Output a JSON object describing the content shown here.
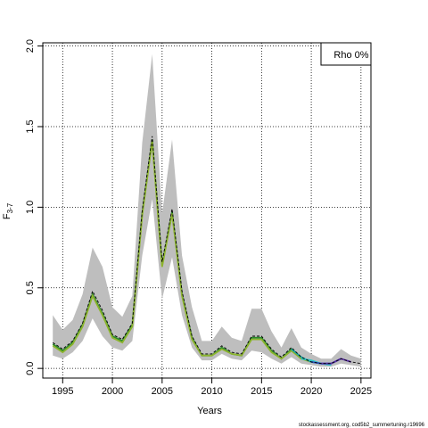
{
  "chart_data": {
    "type": "line",
    "ylabel": "F",
    "ylabel_sub": "3-7",
    "xlabel": "Years",
    "xlim": [
      1993,
      2026
    ],
    "ylim": [
      -0.06,
      2.02
    ],
    "x_ticks": [
      1995,
      2000,
      2005,
      2010,
      2015,
      2020,
      2025
    ],
    "y_ticks": [
      0.0,
      0.5,
      1.0,
      1.5,
      2.0
    ],
    "y_tick_labels": [
      "0.0",
      "0.5",
      "1.0",
      "1.5",
      "2.0"
    ],
    "grid": true,
    "grid_style": "dotted",
    "legend": {
      "text": "Rho 0%",
      "position": "top-right"
    },
    "credit": "stockassessment.org, cod5b2_summertuning.r19696",
    "colors": {
      "band": "#bebebe",
      "estimate_line": "#000000",
      "retro_palette": [
        "#2a8a2a",
        "#8db32e",
        "#1aa3a3",
        "#2fc6c6",
        "#3050c0",
        "#5b30a8"
      ]
    },
    "series": [
      {
        "x": [
          1994,
          1995,
          1996,
          1997,
          1998,
          1999,
          2000,
          2001,
          2002,
          2003,
          2004,
          2005,
          2006,
          2007,
          2008,
          2009,
          2010,
          2011,
          2012,
          2013,
          2014,
          2015,
          2016,
          2017,
          2018,
          2019,
          2020,
          2021,
          2022,
          2023,
          2024,
          2025
        ],
        "values": [
          0.16,
          0.12,
          0.17,
          0.28,
          0.48,
          0.36,
          0.21,
          0.18,
          0.28,
          0.98,
          1.44,
          0.66,
          0.99,
          0.48,
          0.2,
          0.09,
          0.09,
          0.14,
          0.1,
          0.09,
          0.2,
          0.2,
          0.12,
          0.07,
          0.13,
          0.07,
          0.04,
          0.03,
          0.03,
          0.06,
          0.04,
          0.03
        ]
      }
    ],
    "confidence_band": {
      "x": [
        1994,
        1995,
        1996,
        1997,
        1998,
        1999,
        2000,
        2001,
        2002,
        2003,
        2004,
        2005,
        2006,
        2007,
        2008,
        2009,
        2010,
        2011,
        2012,
        2013,
        2014,
        2015,
        2016,
        2017,
        2018,
        2019,
        2020,
        2021,
        2022,
        2023,
        2024,
        2025
      ],
      "lower": [
        0.08,
        0.06,
        0.1,
        0.17,
        0.31,
        0.2,
        0.13,
        0.11,
        0.17,
        0.7,
        1.05,
        0.43,
        0.69,
        0.33,
        0.13,
        0.05,
        0.05,
        0.09,
        0.06,
        0.05,
        0.11,
        0.1,
        0.06,
        0.03,
        0.07,
        0.03,
        0.02,
        0.01,
        0.01,
        0.03,
        0.02,
        0.01
      ],
      "upper": [
        0.33,
        0.24,
        0.3,
        0.46,
        0.75,
        0.63,
        0.38,
        0.32,
        0.45,
        1.4,
        1.95,
        0.96,
        1.42,
        0.7,
        0.38,
        0.17,
        0.17,
        0.26,
        0.19,
        0.17,
        0.37,
        0.37,
        0.23,
        0.13,
        0.25,
        0.13,
        0.09,
        0.06,
        0.06,
        0.12,
        0.08,
        0.06
      ]
    },
    "retro_segments": [
      {
        "color": "#2a8a2a",
        "x": [
          1994,
          1995,
          1996,
          1997,
          1998,
          1999,
          2000,
          2001,
          2002,
          2003,
          2004,
          2005,
          2006,
          2007,
          2008,
          2009,
          2010,
          2011,
          2012,
          2013,
          2014,
          2015,
          2016,
          2017,
          2018,
          2019
        ],
        "values": [
          0.15,
          0.11,
          0.16,
          0.27,
          0.46,
          0.34,
          0.2,
          0.17,
          0.27,
          0.96,
          1.42,
          0.64,
          0.97,
          0.46,
          0.19,
          0.08,
          0.08,
          0.13,
          0.09,
          0.08,
          0.19,
          0.19,
          0.11,
          0.06,
          0.12,
          0.06
        ]
      },
      {
        "color": "#8db32e",
        "x": [
          1994,
          1995,
          1996,
          1997,
          1998,
          1999,
          2000,
          2001,
          2002,
          2003,
          2004,
          2005,
          2006,
          2007,
          2008,
          2009,
          2010,
          2011,
          2012,
          2013,
          2014,
          2015,
          2016,
          2017,
          2018,
          2019,
          2020
        ],
        "values": [
          0.14,
          0.1,
          0.15,
          0.26,
          0.45,
          0.33,
          0.19,
          0.16,
          0.26,
          0.95,
          1.41,
          0.63,
          0.96,
          0.45,
          0.18,
          0.08,
          0.08,
          0.12,
          0.09,
          0.08,
          0.18,
          0.18,
          0.1,
          0.06,
          0.11,
          0.06,
          0.04
        ]
      },
      {
        "color": "#1aa3a3",
        "x": [
          2018,
          2019,
          2020,
          2021
        ],
        "values": [
          0.12,
          0.07,
          0.04,
          0.03
        ]
      },
      {
        "color": "#2fc6c6",
        "x": [
          2019,
          2020,
          2021,
          2022
        ],
        "values": [
          0.06,
          0.05,
          0.03,
          0.02
        ]
      },
      {
        "color": "#3050c0",
        "x": [
          2020,
          2021,
          2022,
          2023
        ],
        "values": [
          0.04,
          0.03,
          0.03,
          0.06
        ]
      },
      {
        "color": "#5b30a8",
        "x": [
          2021,
          2022,
          2023,
          2024
        ],
        "values": [
          0.03,
          0.03,
          0.06,
          0.04
        ]
      }
    ]
  }
}
